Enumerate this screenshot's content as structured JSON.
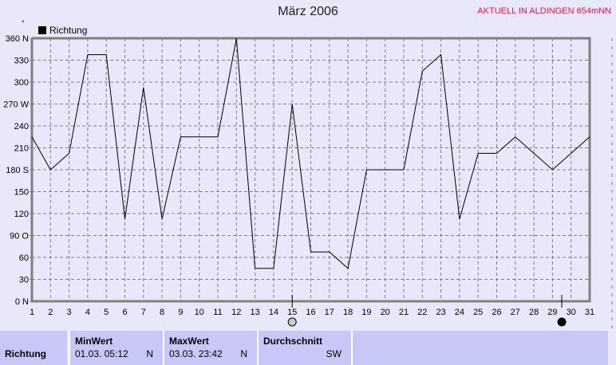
{
  "header": {
    "title": "März 2006",
    "station": "AKTUELL IN ALDINGEN 654mNN",
    "unit_mark": "°"
  },
  "chart_data": {
    "type": "line",
    "title": "März 2006",
    "legend": [
      "Richtung"
    ],
    "legend_placement": "top-left",
    "grid": true,
    "x": [
      1,
      2,
      3,
      4,
      5,
      6,
      7,
      8,
      9,
      10,
      11,
      12,
      13,
      14,
      15,
      16,
      17,
      18,
      19,
      20,
      21,
      22,
      23,
      24,
      25,
      26,
      27,
      28,
      29,
      30,
      31
    ],
    "series": [
      {
        "name": "Richtung",
        "color": "#000000",
        "values": [
          225,
          180,
          202.5,
          337.5,
          337.5,
          112.5,
          292.5,
          112.5,
          225,
          225,
          225,
          360,
          45,
          45,
          270,
          67.5,
          67.5,
          45,
          180,
          180,
          180,
          315,
          337.5,
          112.5,
          202.5,
          202.5,
          225,
          202.5,
          180,
          202.5,
          225
        ]
      }
    ],
    "xlim": [
      1,
      31
    ],
    "ylim": [
      0,
      360
    ],
    "yticks": [
      {
        "v": 0,
        "l": "0   N"
      },
      {
        "v": 30,
        "l": "30"
      },
      {
        "v": 60,
        "l": "60"
      },
      {
        "v": 90,
        "l": "90  O"
      },
      {
        "v": 120,
        "l": "120"
      },
      {
        "v": 150,
        "l": "150"
      },
      {
        "v": 180,
        "l": "180 S"
      },
      {
        "v": 210,
        "l": "210"
      },
      {
        "v": 240,
        "l": "240"
      },
      {
        "v": 270,
        "l": "270 W"
      },
      {
        "v": 300,
        "l": "300"
      },
      {
        "v": 330,
        "l": "330"
      },
      {
        "v": 360,
        "l": "360 N"
      }
    ],
    "moon_markers": [
      {
        "day": 15,
        "phase": "full-moon"
      },
      {
        "day": 29.5,
        "phase": "new-moon"
      }
    ]
  },
  "summary": {
    "row_label": "Richtung",
    "min_label": "MinWert",
    "min_date": "01.03.  05:12",
    "min_value": "N",
    "max_label": "MaxWert",
    "max_date": "03.03.  23:42",
    "max_value": "N",
    "avg_label": "Durchschnitt",
    "avg_value": "SW"
  }
}
